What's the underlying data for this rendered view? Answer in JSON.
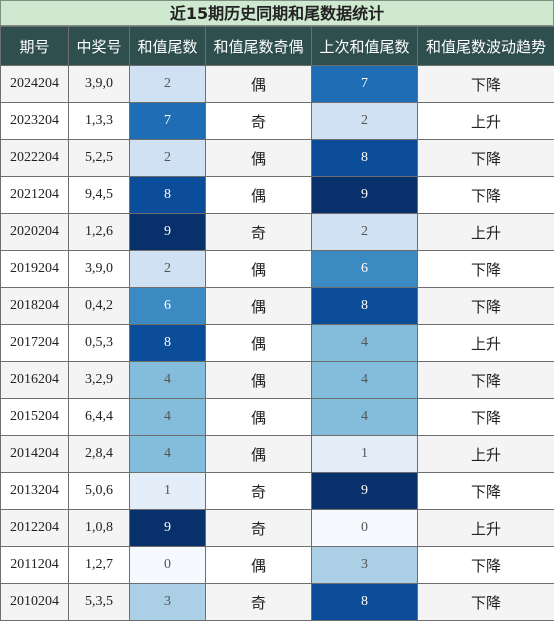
{
  "title": "近15期历史同期和尾数据统计",
  "headers": [
    "期号",
    "中奖号",
    "和值尾数",
    "和值尾数奇偶",
    "上次和值尾数",
    "和值尾数波动趋势"
  ],
  "palette": {
    "0": "#f6faff",
    "1": "#e3eef9",
    "2": "#cfe1f2",
    "3": "#abcfe5",
    "4": "#84bcdb",
    "6": "#3b8bc2",
    "7": "#1f6eb5",
    "8": "#0b4d98",
    "9": "#08306b",
    "light_text": "#555555",
    "dark_text": "#ffffff"
  },
  "rows": [
    {
      "period": "2024204",
      "numbers": "3,9,0",
      "sum_tail": "2",
      "parity": "偶",
      "prev_tail": "7",
      "trend": "下降"
    },
    {
      "period": "2023204",
      "numbers": "1,3,3",
      "sum_tail": "7",
      "parity": "奇",
      "prev_tail": "2",
      "trend": "上升"
    },
    {
      "period": "2022204",
      "numbers": "5,2,5",
      "sum_tail": "2",
      "parity": "偶",
      "prev_tail": "8",
      "trend": "下降"
    },
    {
      "period": "2021204",
      "numbers": "9,4,5",
      "sum_tail": "8",
      "parity": "偶",
      "prev_tail": "9",
      "trend": "下降"
    },
    {
      "period": "2020204",
      "numbers": "1,2,6",
      "sum_tail": "9",
      "parity": "奇",
      "prev_tail": "2",
      "trend": "上升"
    },
    {
      "period": "2019204",
      "numbers": "3,9,0",
      "sum_tail": "2",
      "parity": "偶",
      "prev_tail": "6",
      "trend": "下降"
    },
    {
      "period": "2018204",
      "numbers": "0,4,2",
      "sum_tail": "6",
      "parity": "偶",
      "prev_tail": "8",
      "trend": "下降"
    },
    {
      "period": "2017204",
      "numbers": "0,5,3",
      "sum_tail": "8",
      "parity": "偶",
      "prev_tail": "4",
      "trend": "上升"
    },
    {
      "period": "2016204",
      "numbers": "3,2,9",
      "sum_tail": "4",
      "parity": "偶",
      "prev_tail": "4",
      "trend": "下降"
    },
    {
      "period": "2015204",
      "numbers": "6,4,4",
      "sum_tail": "4",
      "parity": "偶",
      "prev_tail": "4",
      "trend": "下降"
    },
    {
      "period": "2014204",
      "numbers": "2,8,4",
      "sum_tail": "4",
      "parity": "偶",
      "prev_tail": "1",
      "trend": "上升"
    },
    {
      "period": "2013204",
      "numbers": "5,0,6",
      "sum_tail": "1",
      "parity": "奇",
      "prev_tail": "9",
      "trend": "下降"
    },
    {
      "period": "2012204",
      "numbers": "1,0,8",
      "sum_tail": "9",
      "parity": "奇",
      "prev_tail": "0",
      "trend": "上升"
    },
    {
      "period": "2011204",
      "numbers": "1,2,7",
      "sum_tail": "0",
      "parity": "偶",
      "prev_tail": "3",
      "trend": "下降"
    },
    {
      "period": "2010204",
      "numbers": "5,3,5",
      "sum_tail": "3",
      "parity": "奇",
      "prev_tail": "8",
      "trend": "下降"
    }
  ]
}
